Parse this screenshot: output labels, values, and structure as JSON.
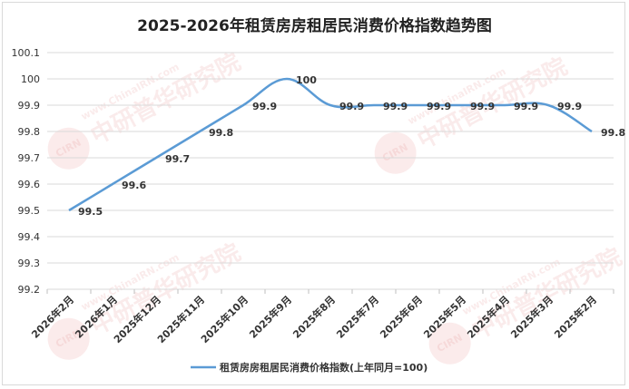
{
  "chart_data": {
    "type": "line",
    "title": "2025-2026年租赁房房租居民消费价格指数趋势图",
    "categories": [
      "2026年2月",
      "2026年1月",
      "2025年12月",
      "2025年11月",
      "2025年10月",
      "2025年9月",
      "2025年8月",
      "2025年7月",
      "2025年6月",
      "2025年5月",
      "2025年4月",
      "2025年3月",
      "2025年2月"
    ],
    "series": [
      {
        "name": "租赁房房租居民消费价格指数(上年同月=100)",
        "values": [
          99.5,
          99.6,
          99.7,
          99.8,
          99.9,
          100,
          99.9,
          99.9,
          99.9,
          99.9,
          99.9,
          99.9,
          99.8
        ],
        "color": "#5b9bd5"
      }
    ],
    "ylim": [
      99.2,
      100.1
    ],
    "yticks": [
      "99.2",
      "99.3",
      "99.4",
      "99.5",
      "99.6",
      "99.7",
      "99.8",
      "99.9",
      "100",
      "100.1"
    ],
    "grid": true,
    "legend_position": "bottom"
  },
  "watermark": {
    "logo": "CIRN",
    "url": "www.ChinaIRN.com",
    "text": "中研普华研究院"
  }
}
